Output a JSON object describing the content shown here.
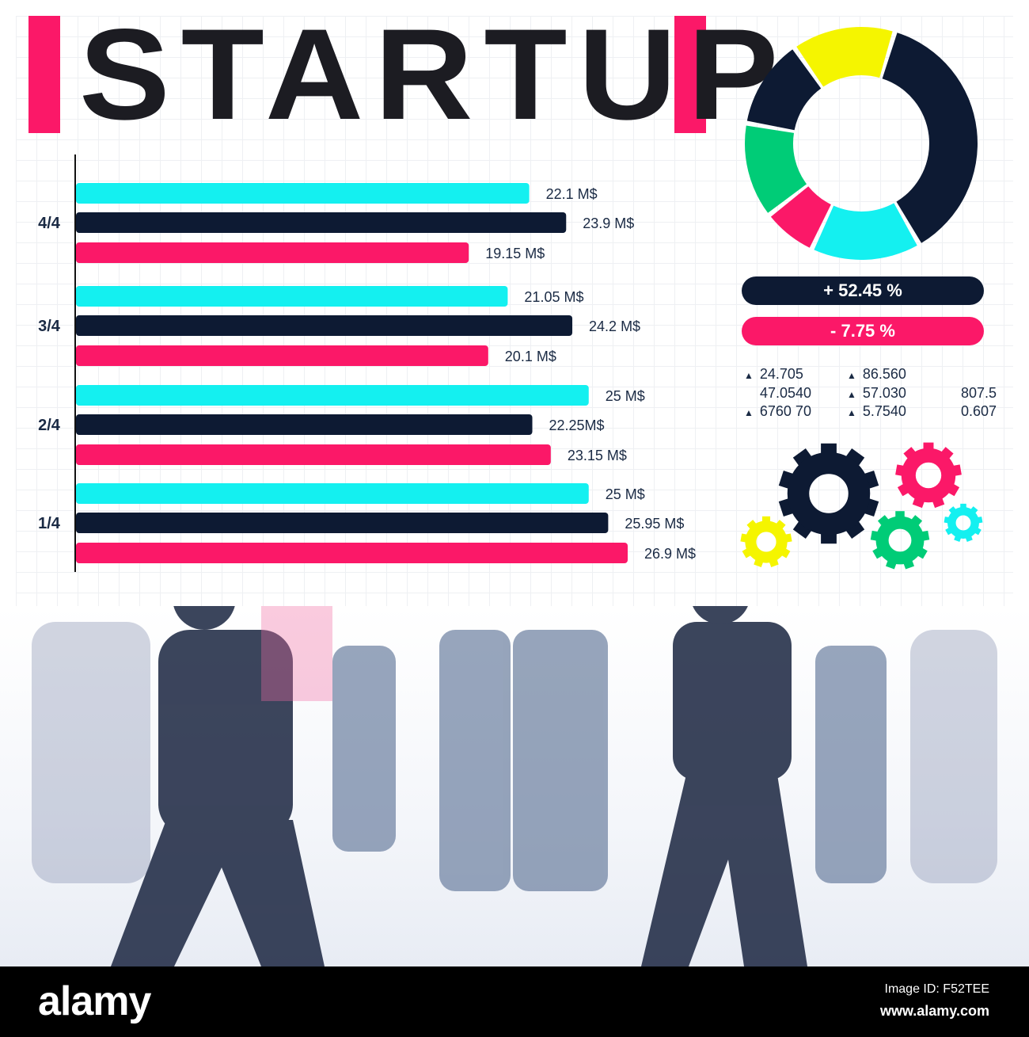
{
  "title": "STARTUP",
  "colors": {
    "cyan": "#14f0f0",
    "navy": "#0d1a33",
    "pink": "#fb1868",
    "yellow": "#f5f500",
    "green": "#00cc77"
  },
  "chart_data": {
    "type": "bar",
    "orientation": "horizontal",
    "categories": [
      "4/4",
      "3/4",
      "2/4",
      "1/4"
    ],
    "series": [
      {
        "name": "cyan",
        "color": "#14f0f0",
        "values": [
          22.1,
          21.05,
          25,
          25
        ],
        "labels": [
          "22.1 M$",
          "21.05 M$",
          "25 M$",
          "25 M$"
        ]
      },
      {
        "name": "navy",
        "color": "#0d1a33",
        "values": [
          23.9,
          24.2,
          22.25,
          25.95
        ],
        "labels": [
          "23.9 M$",
          "24.2 M$",
          "22.25M$",
          "25.95 M$"
        ]
      },
      {
        "name": "pink",
        "color": "#fb1868",
        "values": [
          19.15,
          20.1,
          23.15,
          26.9
        ],
        "labels": [
          "19.15 M$",
          "20.1 M$",
          "23.15 M$",
          "26.9 M$"
        ]
      }
    ],
    "xlim": [
      0,
      27
    ],
    "donut": {
      "type": "pie",
      "values": [
        14.4,
        37,
        15.3,
        7.5,
        13.3,
        12.5
      ],
      "colors": [
        "#f5f500",
        "#0d1a33",
        "#14f0f0",
        "#fb1868",
        "#00cc77",
        "#0d1a33"
      ]
    }
  },
  "pills": {
    "positive": "+ 52.45 %",
    "negative": "- 7.75 %"
  },
  "stats": [
    {
      "text": "24.705",
      "arrow": true
    },
    {
      "text": "86.560",
      "arrow": true
    },
    {
      "text": "47.0540",
      "arrow": false
    },
    {
      "text": "57.030",
      "arrow": true
    },
    {
      "text": "807.5",
      "arrow": false
    },
    {
      "text": "6760 70",
      "arrow": true
    },
    {
      "text": "5.7540",
      "arrow": true
    },
    {
      "text": "0.607",
      "arrow": false
    }
  ],
  "footer": {
    "logo": "alamy",
    "image_id": "Image ID: F52TEE",
    "url": "www.alamy.com"
  },
  "watermark": "alamy"
}
